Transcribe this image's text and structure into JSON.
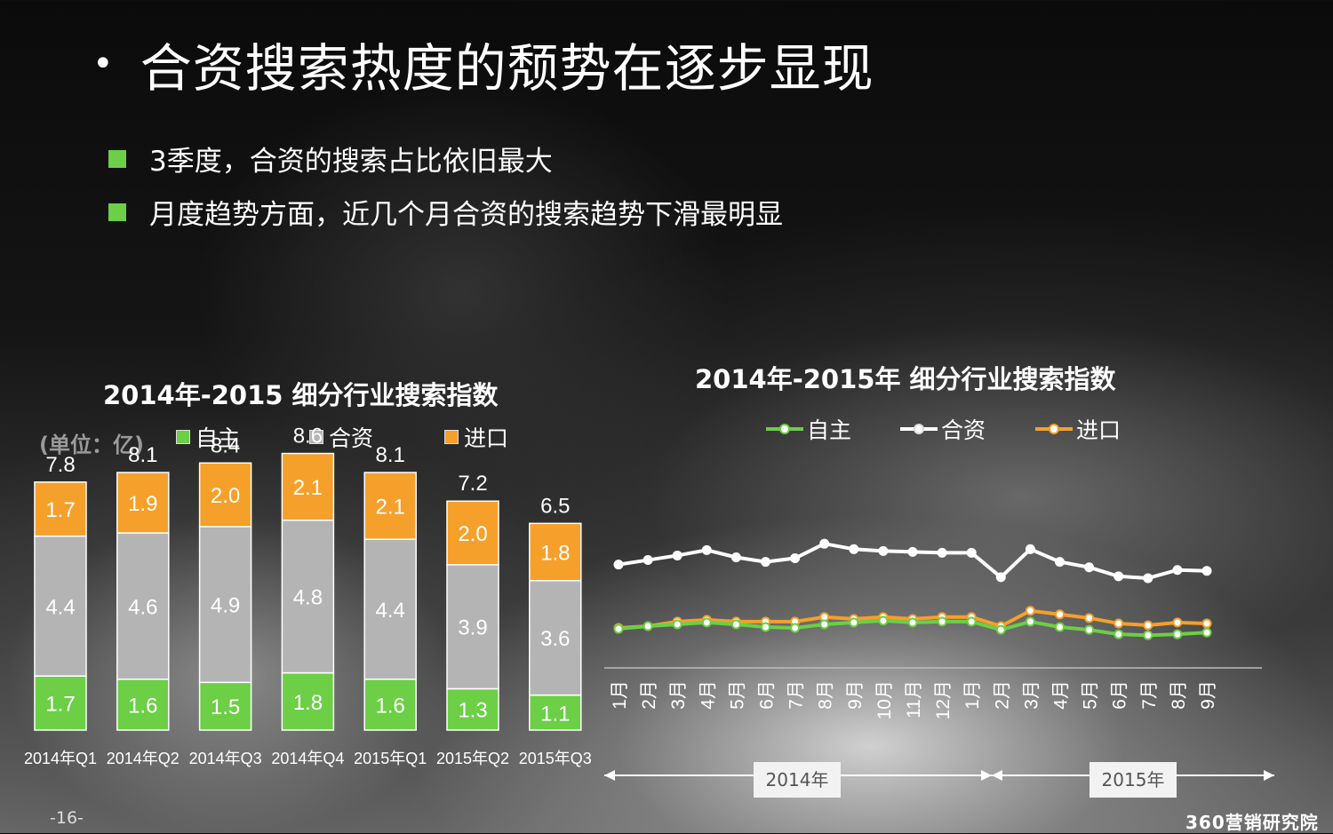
{
  "title": "合资搜索热度的颓势在逐步显现",
  "title_bullet": "•",
  "bullets": [
    "3季度，合资的搜索占比依旧最大",
    "月度趋势方面，近几个月合资的搜索趋势下滑最明显"
  ],
  "page_number": "-16-",
  "brand": "360营销研究院",
  "colors": {
    "green": "#6ccf46",
    "gray": "#b4b4b4",
    "orange": "#f5a02a",
    "white": "#ffffff"
  },
  "chart_data": [
    {
      "type": "bar",
      "stacked": true,
      "title": "2014年-2015 细分行业搜索指数",
      "unit_label": "(单位：亿)",
      "categories": [
        "2014年Q1",
        "2014年Q2",
        "2014年Q3",
        "2014年Q4",
        "2015年Q1",
        "2015年Q2",
        "2015年Q3"
      ],
      "series": [
        {
          "name": "自主",
          "values": [
            1.7,
            1.6,
            1.5,
            1.8,
            1.6,
            1.3,
            1.1
          ]
        },
        {
          "name": "合资",
          "values": [
            4.4,
            4.6,
            4.9,
            4.8,
            4.4,
            3.9,
            3.6
          ]
        },
        {
          "name": "进口",
          "values": [
            1.7,
            1.9,
            2.0,
            2.1,
            2.1,
            2.0,
            1.8
          ]
        }
      ],
      "totals": [
        7.8,
        8.1,
        8.4,
        8.6,
        8.1,
        7.2,
        6.5
      ],
      "ylim": [
        0,
        9
      ]
    },
    {
      "type": "line",
      "title": "2014年-2015年  细分行业搜索指数",
      "x": [
        "1月",
        "2月",
        "3月",
        "4月",
        "5月",
        "6月",
        "7月",
        "8月",
        "9月",
        "10月",
        "11月",
        "12月",
        "1月",
        "2月",
        "3月",
        "4月",
        "5月",
        "6月",
        "7月",
        "8月",
        "9月"
      ],
      "x_groups": [
        {
          "label": "2014年",
          "count": 12
        },
        {
          "label": "2015年",
          "count": 9
        }
      ],
      "series": [
        {
          "name": "自主",
          "values": [
            47,
            50,
            52,
            54,
            52,
            49,
            48,
            52,
            54,
            56,
            54,
            55,
            55,
            46,
            55,
            49,
            46,
            41,
            40,
            41,
            43
          ]
        },
        {
          "name": "合资",
          "values": [
            118,
            123,
            128,
            134,
            126,
            121,
            125,
            141,
            135,
            133,
            132,
            131,
            131,
            104,
            135,
            121,
            115,
            105,
            103,
            112,
            111
          ]
        },
        {
          "name": "进口",
          "values": [
            48,
            50,
            55,
            57,
            55,
            55,
            55,
            60,
            58,
            60,
            58,
            60,
            60,
            50,
            67,
            63,
            59,
            53,
            51,
            54,
            53
          ]
        }
      ],
      "ylim": [
        0,
        200
      ]
    }
  ]
}
